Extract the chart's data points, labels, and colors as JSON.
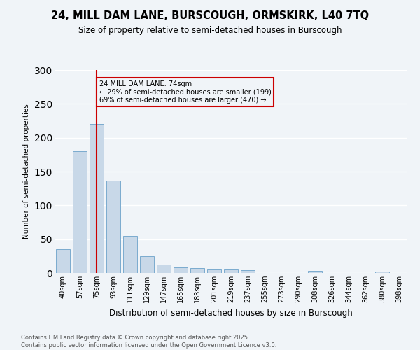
{
  "title": "24, MILL DAM LANE, BURSCOUGH, ORMSKIRK, L40 7TQ",
  "subtitle": "Size of property relative to semi-detached houses in Burscough",
  "xlabel": "Distribution of semi-detached houses by size in Burscough",
  "ylabel": "Number of semi-detached properties",
  "footer_line1": "Contains HM Land Registry data © Crown copyright and database right 2025.",
  "footer_line2": "Contains public sector information licensed under the Open Government Licence v3.0.",
  "categories": [
    "40sqm",
    "57sqm",
    "75sqm",
    "93sqm",
    "111sqm",
    "129sqm",
    "147sqm",
    "165sqm",
    "183sqm",
    "201sqm",
    "219sqm",
    "237sqm",
    "255sqm",
    "273sqm",
    "290sqm",
    "308sqm",
    "326sqm",
    "344sqm",
    "362sqm",
    "380sqm",
    "398sqm"
  ],
  "values": [
    35,
    180,
    220,
    137,
    55,
    25,
    12,
    8,
    7,
    5,
    5,
    4,
    0,
    0,
    0,
    3,
    0,
    0,
    0,
    2,
    0
  ],
  "bar_color": "#c8d8e8",
  "bar_edgecolor": "#7aabcf",
  "property_size_index": 2,
  "property_label": "24 MILL DAM LANE: 74sqm",
  "pct_smaller": "29% of semi-detached houses are smaller (199)",
  "pct_larger": "69% of semi-detached houses are larger (470)",
  "vline_color": "#cc0000",
  "annotation_box_edgecolor": "#cc0000",
  "background_color": "#f0f4f8",
  "ylim": [
    0,
    300
  ],
  "yticks": [
    0,
    50,
    100,
    150,
    200,
    250,
    300
  ]
}
